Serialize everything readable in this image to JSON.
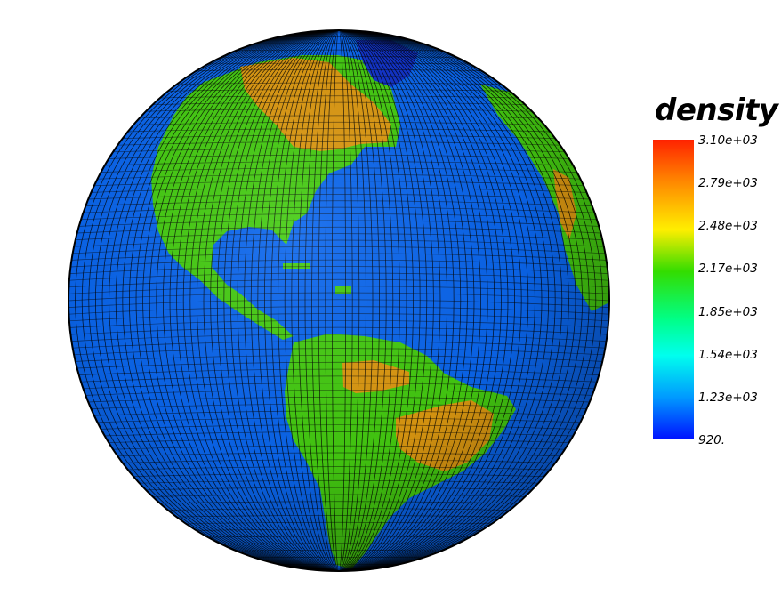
{
  "legend": {
    "title": "density",
    "ticks": [
      "3.10e+03",
      "2.79e+03",
      "2.48e+03",
      "2.17e+03",
      "1.85e+03",
      "1.54e+03",
      "1.23e+03",
      "920."
    ],
    "colors": [
      "#ff2200",
      "#ff9900",
      "#ffee00",
      "#33dd00",
      "#00ff66",
      "#00ffee",
      "#00aaff",
      "#0022ff"
    ]
  },
  "colors": {
    "ocean": "#0a66ee",
    "land_low": "#44cc11",
    "land_high": "#dd9911",
    "grid": "#000000"
  }
}
